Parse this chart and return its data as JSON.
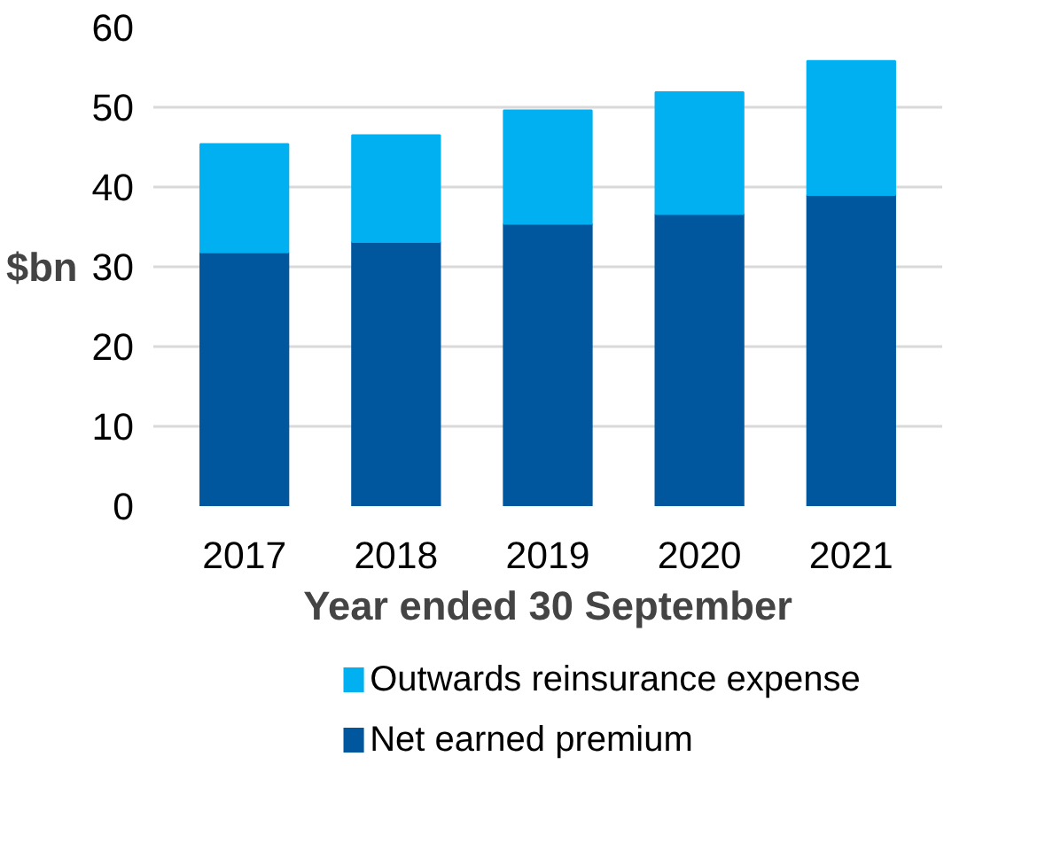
{
  "chart_data": {
    "type": "bar",
    "stacked": true,
    "xlabel": "Year ended 30 September",
    "ylabel": "$bn",
    "categories": [
      "2017",
      "2018",
      "2019",
      "2020",
      "2021"
    ],
    "series": [
      {
        "name": "Net earned premium",
        "color": "#00579d",
        "values": [
          31.8,
          33.1,
          35.4,
          36.6,
          39.0
        ]
      },
      {
        "name": "Outwards reinsurance expense",
        "color": "#00b0f0",
        "values": [
          13.6,
          13.4,
          14.2,
          15.3,
          16.8
        ]
      }
    ],
    "ylim": [
      0,
      60
    ],
    "yticks": [
      0,
      10,
      20,
      30,
      40,
      50,
      60
    ],
    "grid": "y",
    "legend": "bottom"
  }
}
